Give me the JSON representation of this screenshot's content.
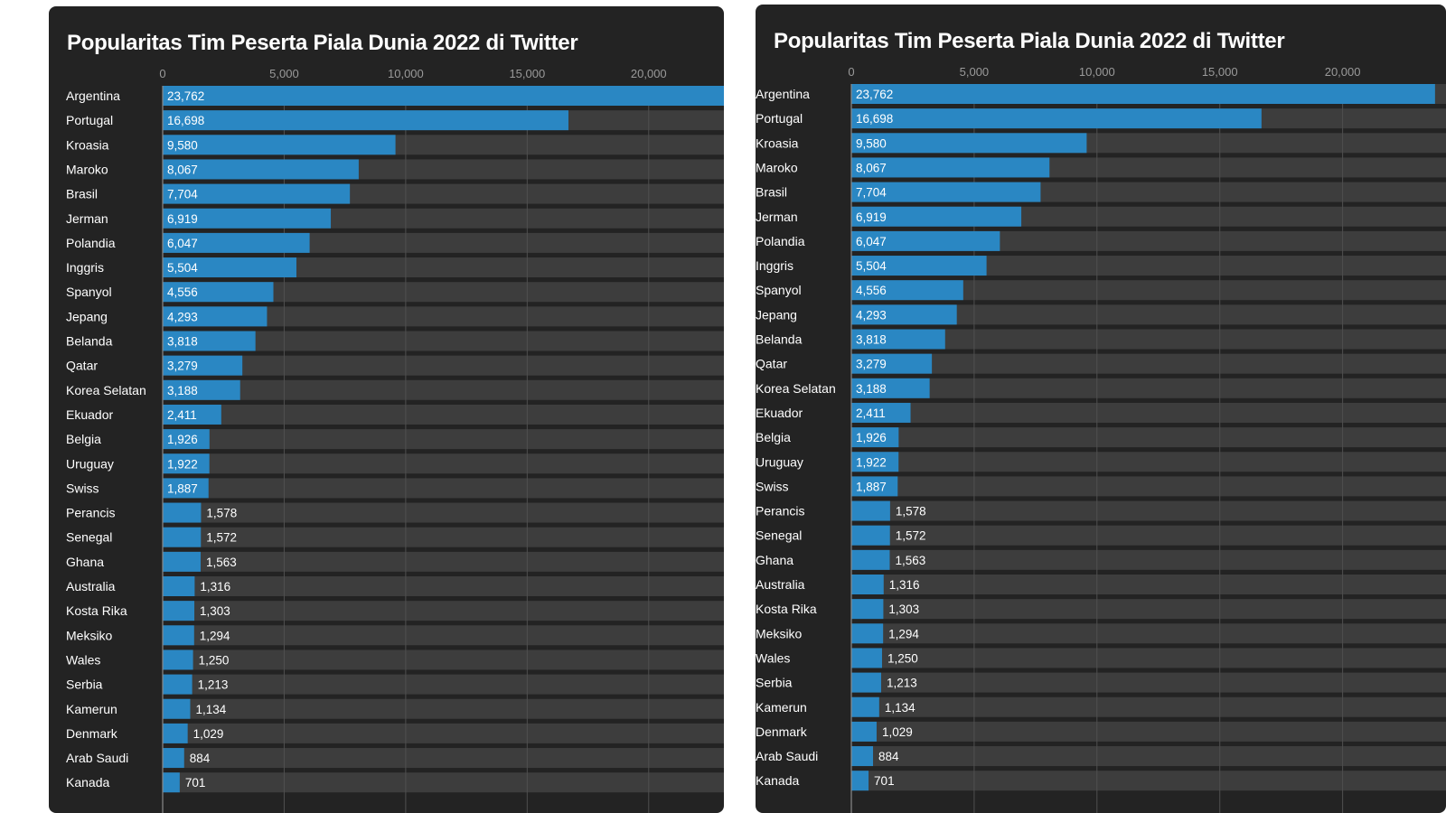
{
  "chart_data": [
    {
      "type": "bar",
      "orientation": "horizontal",
      "title": "Popularitas Tim Peserta Piala Dunia 2022 di Twitter",
      "xlim": [
        0,
        22500
      ],
      "x_ticks": [
        "0",
        "5,000",
        "10,000",
        "15,000",
        "20,000"
      ],
      "x_tick_values": [
        0,
        5000,
        10000,
        15000,
        20000
      ],
      "grid": true,
      "bar_color": "#2a87c3",
      "background_color": "#232323",
      "track_color": "#3d3d3d",
      "categories": [
        "Argentina",
        "Portugal",
        "Kroasia",
        "Maroko",
        "Brasil",
        "Jerman",
        "Polandia",
        "Inggris",
        "Spanyol",
        "Jepang",
        "Belanda",
        "Qatar",
        "Korea Selatan",
        "Ekuador",
        "Belgia",
        "Uruguay",
        "Swiss",
        "Perancis",
        "Senegal",
        "Ghana",
        "Australia",
        "Kosta Rika",
        "Meksiko",
        "Wales",
        "Serbia",
        "Kamerun",
        "Denmark",
        "Arab Saudi",
        "Kanada"
      ],
      "values": [
        23762,
        16698,
        9580,
        8067,
        7704,
        6919,
        6047,
        5504,
        4556,
        4293,
        3818,
        3279,
        3188,
        2411,
        1926,
        1922,
        1887,
        1578,
        1572,
        1563,
        1316,
        1303,
        1294,
        1250,
        1213,
        1134,
        1029,
        884,
        701
      ],
      "value_labels": [
        "23,762",
        "16,698",
        "9,580",
        "8,067",
        "7,704",
        "6,919",
        "6,047",
        "5,504",
        "4,556",
        "4,293",
        "3,818",
        "3,279",
        "3,188",
        "2,411",
        "1,926",
        "1,922",
        "1,887",
        "1,578",
        "1,572",
        "1,563",
        "1,316",
        "1,303",
        "1,294",
        "1,250",
        "1,213",
        "1,134",
        "1,029",
        "884",
        "701"
      ]
    },
    {
      "type": "bar",
      "orientation": "horizontal",
      "title": "Popularitas Tim Peserta Piala Dunia 2022 di Twitter",
      "xlim": [
        0,
        22700
      ],
      "x_ticks": [
        "0",
        "5,000",
        "10,000",
        "15,000",
        "20,000"
      ],
      "x_tick_values": [
        0,
        5000,
        10000,
        15000,
        20000
      ],
      "grid": true,
      "bar_color": "#2a87c3",
      "background_color": "#232323",
      "track_color": "#3d3d3d",
      "categories": [
        "Argentina",
        "Portugal",
        "Kroasia",
        "Maroko",
        "Brasil",
        "Jerman",
        "Polandia",
        "Inggris",
        "Spanyol",
        "Jepang",
        "Belanda",
        "Qatar",
        "Korea Selatan",
        "Ekuador",
        "Belgia",
        "Uruguay",
        "Swiss",
        "Perancis",
        "Senegal",
        "Ghana",
        "Australia",
        "Kosta Rika",
        "Meksiko",
        "Wales",
        "Serbia",
        "Kamerun",
        "Denmark",
        "Arab Saudi",
        "Kanada"
      ],
      "values": [
        23762,
        16698,
        9580,
        8067,
        7704,
        6919,
        6047,
        5504,
        4556,
        4293,
        3818,
        3279,
        3188,
        2411,
        1926,
        1922,
        1887,
        1578,
        1572,
        1563,
        1316,
        1303,
        1294,
        1250,
        1213,
        1134,
        1029,
        884,
        701
      ],
      "value_labels": [
        "23,762",
        "16,698",
        "9,580",
        "8,067",
        "7,704",
        "6,919",
        "6,047",
        "5,504",
        "4,556",
        "4,293",
        "3,818",
        "3,279",
        "3,188",
        "2,411",
        "1,926",
        "1,922",
        "1,887",
        "1,578",
        "1,572",
        "1,563",
        "1,316",
        "1,303",
        "1,294",
        "1,250",
        "1,213",
        "1,134",
        "1,029",
        "884",
        "701"
      ]
    }
  ]
}
